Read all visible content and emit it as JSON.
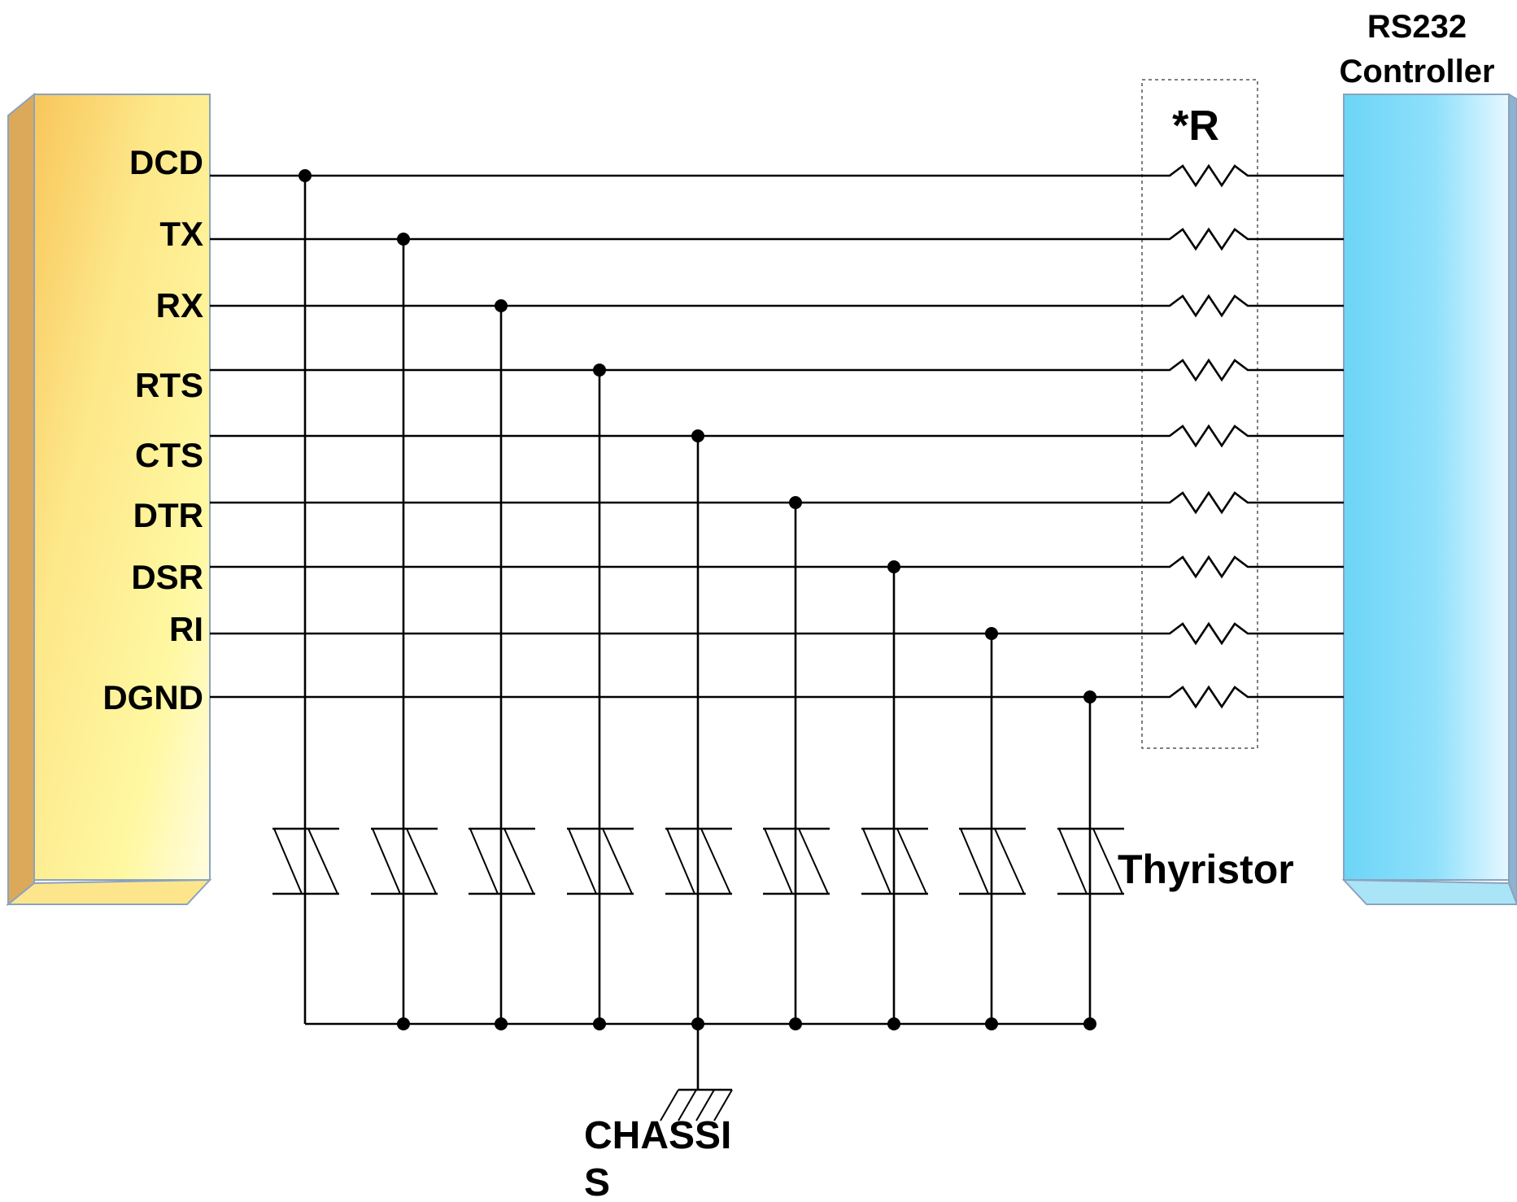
{
  "diagram": {
    "signals": [
      "DCD",
      "TX",
      "RX",
      "RTS",
      "CTS",
      "DTR",
      "DSR",
      "RI",
      "DGND"
    ],
    "controller_label": [
      "RS232",
      "Controller"
    ],
    "resistor_label": "*R",
    "thyristor_label": "Thyristor",
    "chassis_label": [
      "CHASSI",
      "S"
    ]
  },
  "colors": {
    "connector_light": "#fff7a0",
    "connector_dark": "#f7c55a",
    "connector_side": "#dca95a",
    "controller_light": "#d9f4ff",
    "controller_dark": "#6fd6f7",
    "controller_side": "#8fb2cf",
    "line": "#000000"
  }
}
